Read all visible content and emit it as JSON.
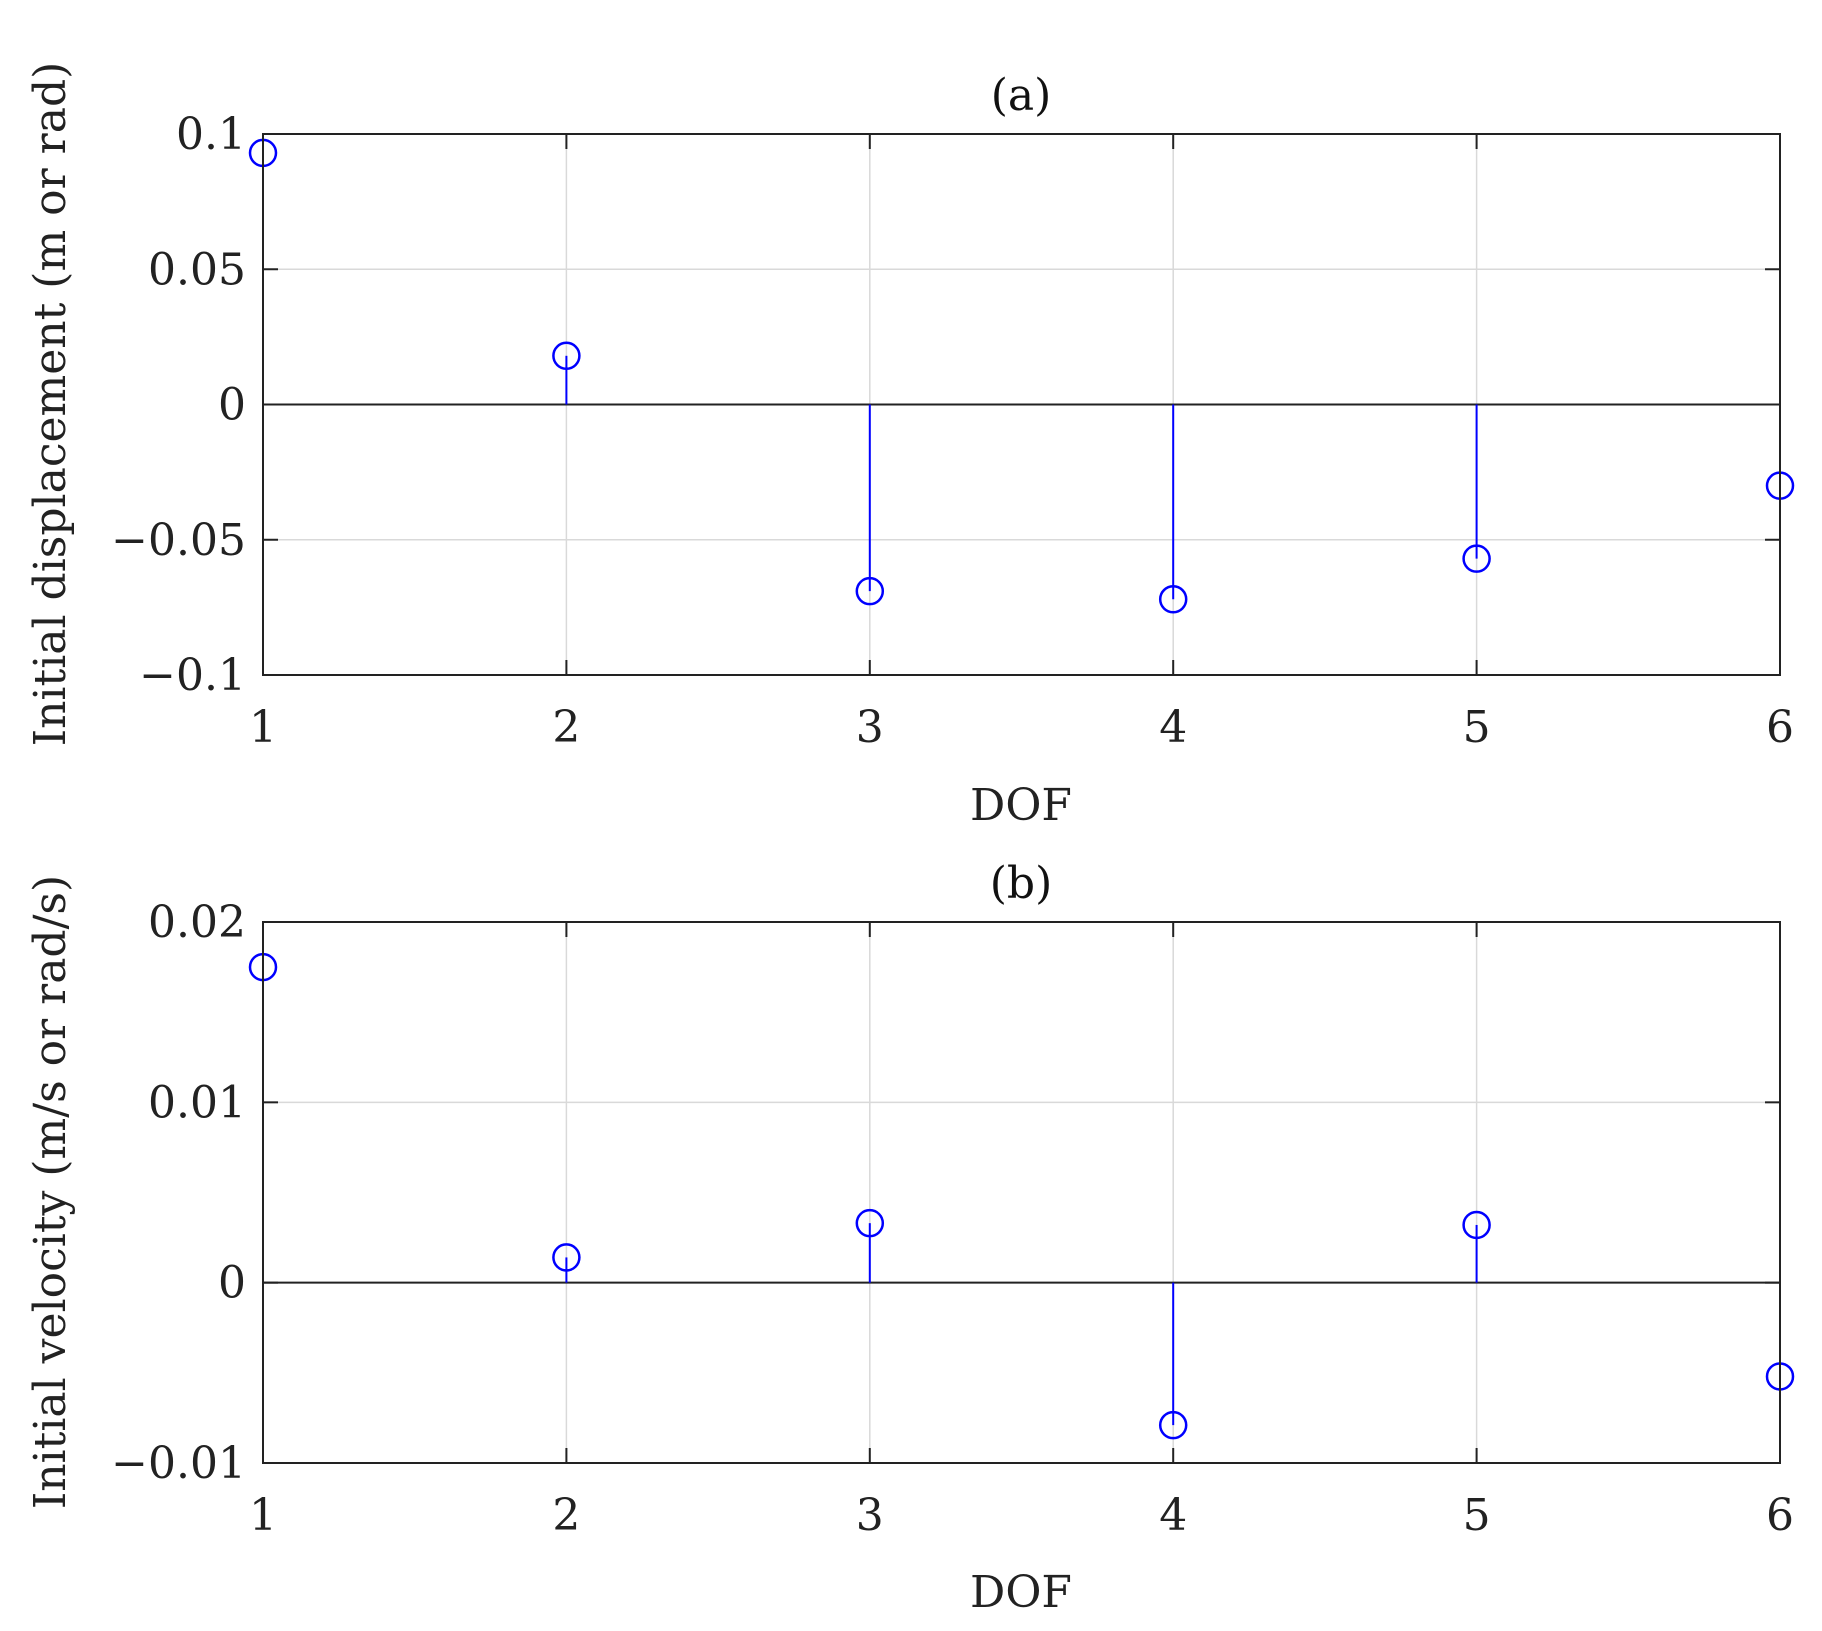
{
  "chart_data": [
    {
      "type": "stem",
      "title": "(a)",
      "xlabel": "DOF",
      "ylabel": "Initial displacement (m or rad)",
      "x": [
        1,
        2,
        3,
        4,
        5,
        6
      ],
      "values": [
        0.093,
        0.018,
        -0.069,
        -0.072,
        -0.057,
        -0.03
      ],
      "xlim": [
        1,
        6
      ],
      "ylim": [
        -0.1,
        0.1
      ],
      "xticks": [
        1,
        2,
        3,
        4,
        5,
        6
      ],
      "xtick_labels": [
        "1",
        "2",
        "3",
        "4",
        "5",
        "6"
      ],
      "yticks": [
        0.1,
        0.05,
        0,
        -0.05,
        -0.1
      ],
      "ytick_labels": [
        "0.1",
        "0.05",
        "0",
        "−0.05",
        "−0.1"
      ],
      "grid": true,
      "color": "#0000ff",
      "marker": "open-circle"
    },
    {
      "type": "stem",
      "title": "(b)",
      "xlabel": "DOF",
      "ylabel": "Initial velocity (m/s or rad/s)",
      "x": [
        1,
        2,
        3,
        4,
        5,
        6
      ],
      "values": [
        0.0175,
        0.0014,
        0.0033,
        -0.0079,
        0.0032,
        -0.0052
      ],
      "xlim": [
        1,
        6
      ],
      "ylim": [
        -0.01,
        0.02
      ],
      "xticks": [
        1,
        2,
        3,
        4,
        5,
        6
      ],
      "xtick_labels": [
        "1",
        "2",
        "3",
        "4",
        "5",
        "6"
      ],
      "yticks": [
        0.02,
        0.01,
        0,
        -0.01
      ],
      "ytick_labels": [
        "0.02",
        "0.01",
        "0",
        "−0.01"
      ],
      "grid": true,
      "color": "#0000ff",
      "marker": "open-circle"
    }
  ]
}
